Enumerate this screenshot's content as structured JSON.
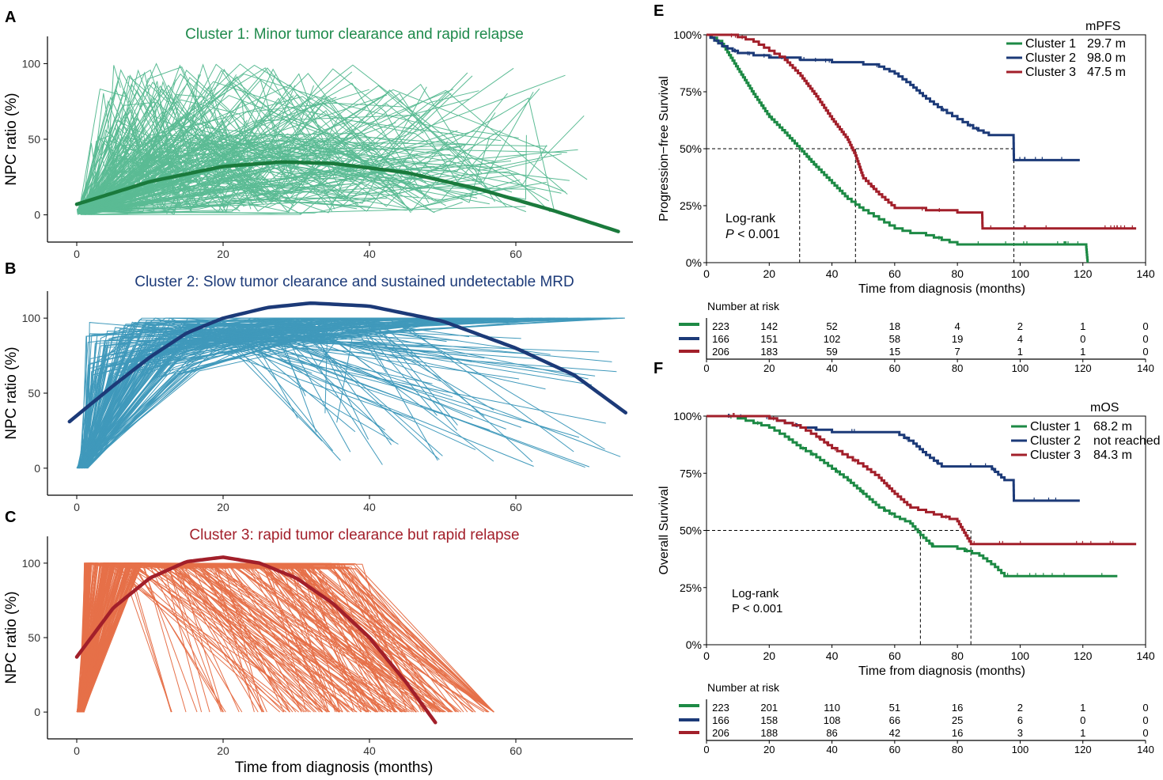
{
  "chart_data": [
    {
      "panel": "A",
      "type": "line",
      "title": "Cluster 1: Minor tumor clearance and rapid relapse",
      "ylabel": "NPC ratio (%)",
      "xlabel": "",
      "xticks": [
        "0",
        "20",
        "40",
        "60"
      ],
      "yticks": [
        "0",
        "50",
        "100"
      ],
      "xlim": [
        -4,
        76
      ],
      "ylim": [
        -18,
        118
      ],
      "colors": {
        "lines": "#3fb082",
        "fit": "#1a7a3c",
        "title": "#1f8a4c"
      },
      "fit": {
        "x": [
          0,
          10,
          20,
          28,
          35,
          45,
          55,
          65,
          74
        ],
        "y": [
          7,
          22,
          32,
          35,
          34,
          28,
          17,
          3,
          -11
        ]
      },
      "individual_lines_max_x": 74
    },
    {
      "panel": "B",
      "type": "line",
      "title": "Cluster 2: Slow tumor clearance and sustained undetectable MRD",
      "ylabel": "NPC ratio (%)",
      "xlabel": "",
      "xticks": [
        "0",
        "20",
        "40",
        "60"
      ],
      "yticks": [
        "0",
        "50",
        "100"
      ],
      "xlim": [
        -4,
        76
      ],
      "ylim": [
        -18,
        118
      ],
      "colors": {
        "lines": "#1f88b0",
        "fit": "#1c3a78",
        "title": "#1c3a78"
      },
      "fit": {
        "x": [
          -1,
          5,
          10,
          15,
          20,
          26,
          32,
          40,
          50,
          60,
          68,
          75
        ],
        "y": [
          31,
          55,
          74,
          90,
          100,
          107,
          110,
          108,
          98,
          80,
          62,
          37
        ]
      },
      "individual_lines_max_x": 75
    },
    {
      "panel": "C",
      "type": "line",
      "title": "Cluster 3: rapid tumor clearance but rapid relapse",
      "ylabel": "NPC ratio (%)",
      "xlabel": "Time from diagnosis (months)",
      "xticks": [
        "0",
        "20",
        "40",
        "60"
      ],
      "yticks": [
        "0",
        "50",
        "100"
      ],
      "xlim": [
        -4,
        76
      ],
      "ylim": [
        -18,
        118
      ],
      "colors": {
        "lines": "#e2582a",
        "fit": "#a21f2a",
        "title": "#a21f2a"
      },
      "fit": {
        "x": [
          0,
          5,
          10,
          15,
          20,
          25,
          30,
          35,
          40,
          45,
          49
        ],
        "y": [
          37,
          70,
          90,
          101,
          104,
          100,
          90,
          73,
          50,
          20,
          -7
        ]
      },
      "individual_lines_max_x": 57
    },
    {
      "panel": "E",
      "type": "line",
      "subtype": "kaplan-meier",
      "ylabel": "Progression−free Survival",
      "xlabel": "Time from diagnosis (months)",
      "xticks": [
        "0",
        "20",
        "40",
        "60",
        "80",
        "100",
        "120",
        "140"
      ],
      "yticks": [
        "0%",
        "25%",
        "50%",
        "75%",
        "100%"
      ],
      "xlim": [
        0,
        140
      ],
      "ylim": [
        0,
        100
      ],
      "legend_title": "mPFS",
      "legend_position": "top-right",
      "stat": [
        "Log-rank",
        "P",
        " < 0.001"
      ],
      "series": [
        {
          "name": "Cluster 1",
          "median": "29.7 m",
          "color": "#1d8a45",
          "x": [
            0,
            5,
            10,
            15,
            20,
            25,
            29.7,
            35,
            40,
            45,
            50,
            55,
            60,
            65,
            70,
            75,
            80,
            90,
            100,
            110,
            121,
            121.5
          ],
          "y": [
            100,
            96,
            85,
            74,
            64,
            57,
            50,
            42,
            35,
            28,
            23,
            19,
            15,
            13,
            12,
            10,
            8,
            8,
            8,
            8,
            8,
            0
          ]
        },
        {
          "name": "Cluster 2",
          "median": "98.0 m",
          "color": "#1c3a78",
          "x": [
            0,
            5,
            10,
            20,
            30,
            40,
            50,
            55,
            60,
            65,
            70,
            75,
            80,
            85,
            90,
            97.9,
            98,
            110,
            119
          ],
          "y": [
            100,
            95,
            92,
            90,
            89,
            88,
            87,
            86,
            83,
            78,
            72,
            67,
            63,
            59,
            56,
            56,
            45,
            45,
            45
          ]
        },
        {
          "name": "Cluster 3",
          "median": "47.5 m",
          "color": "#a21f2a",
          "x": [
            0,
            10,
            15,
            20,
            25,
            30,
            35,
            40,
            45,
            47.5,
            50,
            55,
            60,
            70,
            80,
            87.9,
            88,
            100,
            120,
            137
          ],
          "y": [
            100,
            99,
            97,
            93,
            89,
            82,
            73,
            63,
            54,
            47,
            37,
            30,
            24,
            23,
            22,
            22,
            15,
            15,
            15,
            15
          ]
        }
      ],
      "median_line_x": [
        29.7,
        47.5,
        98.0
      ],
      "risk_table": {
        "title": "Number at risk",
        "times": [
          "0",
          "20",
          "40",
          "60",
          "80",
          "100",
          "120",
          "140"
        ],
        "rows": [
          [
            "223",
            "142",
            "52",
            "18",
            "4",
            "2",
            "1",
            "0"
          ],
          [
            "166",
            "151",
            "102",
            "58",
            "19",
            "4",
            "0",
            "0"
          ],
          [
            "206",
            "183",
            "59",
            "15",
            "7",
            "1",
            "1",
            "0"
          ]
        ]
      }
    },
    {
      "panel": "F",
      "type": "line",
      "subtype": "kaplan-meier",
      "ylabel": "Overall Survival",
      "xlabel": "Time from diagnosis (months)",
      "xticks": [
        "0",
        "20",
        "40",
        "60",
        "80",
        "100",
        "120",
        "140"
      ],
      "yticks": [
        "0%",
        "25%",
        "50%",
        "75%",
        "100%"
      ],
      "xlim": [
        0,
        140
      ],
      "ylim": [
        0,
        100
      ],
      "legend_title": "mOS",
      "legend_position": "top-right",
      "stat": [
        "Log-rank",
        "P < 0.001"
      ],
      "series": [
        {
          "name": "Cluster 1",
          "median": "68.2 m",
          "color": "#1d8a45",
          "x": [
            0,
            10,
            15,
            20,
            25,
            30,
            35,
            40,
            45,
            50,
            55,
            60,
            65,
            68.2,
            72,
            80,
            87,
            92,
            95,
            110,
            131
          ],
          "y": [
            100,
            99,
            97,
            95,
            91,
            86,
            82,
            77,
            72,
            66,
            60,
            56,
            53,
            48,
            43,
            42,
            39,
            34,
            30,
            30,
            30
          ]
        },
        {
          "name": "Cluster 2",
          "median": "not reached",
          "color": "#1c3a78",
          "x": [
            0,
            20,
            25,
            30,
            40,
            60,
            66,
            70,
            75,
            80,
            90,
            95,
            97.9,
            98,
            119
          ],
          "y": [
            100,
            99,
            97,
            95,
            93,
            93,
            88,
            83,
            78,
            78,
            78,
            72,
            72,
            63,
            63
          ]
        },
        {
          "name": "Cluster 3",
          "median": "84.3 m",
          "color": "#a21f2a",
          "x": [
            0,
            15,
            20,
            25,
            30,
            35,
            40,
            45,
            50,
            55,
            60,
            65,
            70,
            75,
            80,
            84.3,
            90,
            100,
            120,
            137
          ],
          "y": [
            100,
            100,
            99,
            97,
            95,
            91,
            86,
            82,
            78,
            73,
            66,
            60,
            58,
            56,
            54,
            44,
            44,
            44,
            44,
            44
          ]
        }
      ],
      "median_line_x": [
        68.2,
        84.3
      ],
      "risk_table": {
        "title": "Number at risk",
        "times": [
          "0",
          "20",
          "40",
          "60",
          "80",
          "100",
          "120",
          "140"
        ],
        "rows": [
          [
            "223",
            "201",
            "110",
            "51",
            "16",
            "2",
            "1",
            "0"
          ],
          [
            "166",
            "158",
            "108",
            "66",
            "25",
            "6",
            "0",
            "0"
          ],
          [
            "206",
            "188",
            "86",
            "42",
            "16",
            "3",
            "1",
            "0"
          ]
        ]
      }
    }
  ]
}
